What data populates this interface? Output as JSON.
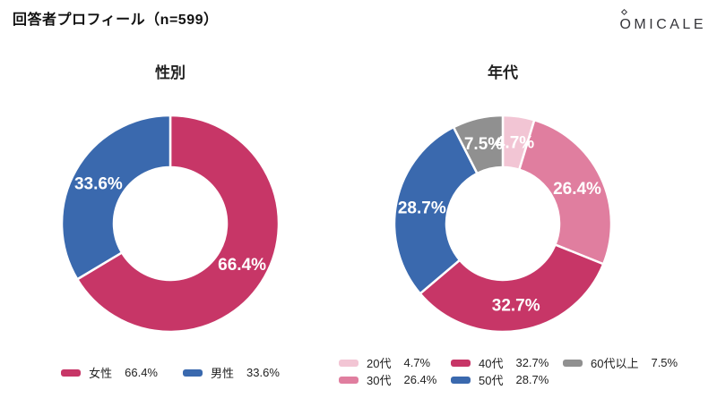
{
  "header": {
    "title": "回答者プロフィール（n=599）",
    "brand": "OMICALE"
  },
  "chart_data": [
    {
      "type": "pie",
      "title": "性別",
      "hole_ratio": 0.52,
      "start_angle": "top",
      "direction": "clockwise",
      "legend_position": "bottom",
      "labels": [
        "女性",
        "男性"
      ],
      "values": [
        66.4,
        33.6
      ],
      "segments": [
        {
          "label": "女性",
          "value": 66.4,
          "display": "66.4%",
          "color": "#C73667"
        },
        {
          "label": "男性",
          "value": 33.6,
          "display": "33.6%",
          "color": "#3A69AE"
        }
      ]
    },
    {
      "type": "pie",
      "title": "年代",
      "hole_ratio": 0.52,
      "start_angle": "top",
      "direction": "clockwise",
      "legend_position": "bottom",
      "labels": [
        "20代",
        "30代",
        "40代",
        "50代",
        "60代以上"
      ],
      "values": [
        4.7,
        26.4,
        32.7,
        28.7,
        7.5
      ],
      "segments": [
        {
          "label": "20代",
          "value": 4.7,
          "display": "4.7%",
          "color": "#F2C5D4"
        },
        {
          "label": "30代",
          "value": 26.4,
          "display": "26.4%",
          "color": "#E07E9F"
        },
        {
          "label": "40代",
          "value": 32.7,
          "display": "32.7%",
          "color": "#C73667"
        },
        {
          "label": "50代",
          "value": 28.7,
          "display": "28.7%",
          "color": "#3A69AE"
        },
        {
          "label": "60代以上",
          "value": 7.5,
          "display": "7.5%",
          "color": "#909090"
        }
      ]
    }
  ]
}
